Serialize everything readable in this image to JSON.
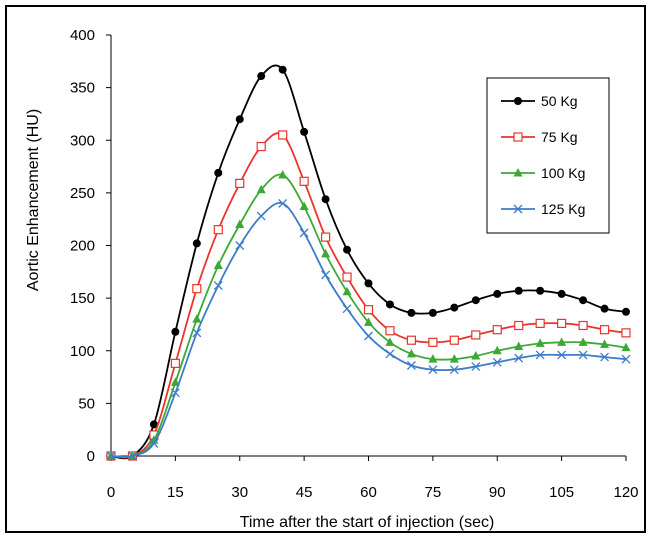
{
  "chart_data": {
    "type": "line",
    "xlabel": "Time after the start of injection (sec)",
    "ylabel": "Aortic Enhancement  (HU)",
    "xlim": [
      0,
      120
    ],
    "ylim": [
      0,
      400
    ],
    "xticks": [
      0,
      15,
      30,
      45,
      60,
      75,
      90,
      105,
      120
    ],
    "yticks": [
      0,
      50,
      100,
      150,
      200,
      250,
      300,
      350,
      400
    ],
    "grid": false,
    "legend_position": "top-right",
    "x": [
      0,
      5,
      10,
      15,
      20,
      25,
      30,
      35,
      40,
      45,
      50,
      55,
      60,
      65,
      70,
      75,
      80,
      85,
      90,
      95,
      100,
      105,
      110,
      115,
      120
    ],
    "series": [
      {
        "name": "50 Kg",
        "color": "#000000",
        "marker": "circle",
        "values": [
          0,
          0,
          30,
          118,
          202,
          269,
          320,
          361,
          367,
          308,
          244,
          196,
          164,
          144,
          136,
          136,
          141,
          148,
          154,
          157,
          157,
          154,
          148,
          140,
          137
        ]
      },
      {
        "name": "75 Kg",
        "color": "#e8352b",
        "marker": "square",
        "values": [
          0,
          0,
          20,
          88,
          159,
          215,
          259,
          294,
          305,
          261,
          208,
          170,
          139,
          119,
          110,
          108,
          110,
          115,
          120,
          124,
          126,
          126,
          124,
          120,
          117
        ]
      },
      {
        "name": "100 Kg",
        "color": "#3aaa35",
        "marker": "triangle",
        "values": [
          0,
          0,
          15,
          70,
          130,
          181,
          220,
          253,
          267,
          237,
          192,
          156,
          127,
          108,
          97,
          92,
          92,
          95,
          100,
          104,
          107,
          108,
          108,
          106,
          103
        ]
      },
      {
        "name": "125 Kg",
        "color": "#3d7cc9",
        "marker": "x",
        "values": [
          0,
          0,
          12,
          60,
          117,
          162,
          200,
          228,
          240,
          212,
          172,
          140,
          114,
          97,
          86,
          82,
          82,
          85,
          89,
          93,
          96,
          96,
          96,
          94,
          92
        ]
      }
    ]
  }
}
